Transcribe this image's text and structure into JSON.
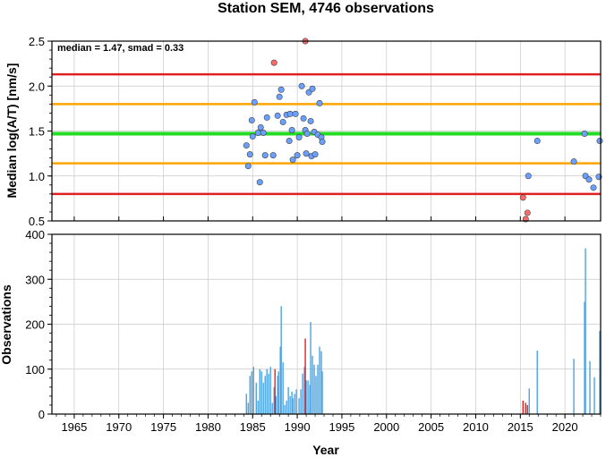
{
  "title": "Station SEM, 4746 observations",
  "chart_data": [
    {
      "type": "scatter",
      "panel": "top",
      "annotation": "median = 1.47, smad = 0.33",
      "xlabel": "",
      "ylabel": "Median log(A/T) [nm/s]",
      "xlim": [
        1962.5,
        2024.0
      ],
      "ylim": [
        0.5,
        2.5
      ],
      "yticks": [
        "0.5",
        "1.0",
        "1.5",
        "2.0",
        "2.5"
      ],
      "grid": true,
      "hlines": [
        {
          "value": 2.13,
          "color": "#e02020"
        },
        {
          "value": 1.8,
          "color": "#ffa500"
        },
        {
          "value": 1.47,
          "color": "#22dd22"
        },
        {
          "value": 1.14,
          "color": "#ffa500"
        },
        {
          "value": 0.8,
          "color": "#e02020"
        }
      ],
      "series": [
        {
          "color": "#6aa0ff",
          "points": [
            [
              1984.3,
              1.34
            ],
            [
              1984.5,
              1.11
            ],
            [
              1984.7,
              1.24
            ],
            [
              1984.9,
              1.62
            ],
            [
              1985.0,
              1.44
            ],
            [
              1985.2,
              1.82
            ],
            [
              1985.6,
              1.48
            ],
            [
              1985.8,
              0.93
            ],
            [
              1985.9,
              1.54
            ],
            [
              1986.2,
              1.48
            ],
            [
              1986.4,
              1.23
            ],
            [
              1986.6,
              1.65
            ],
            [
              1987.3,
              1.23
            ],
            [
              1987.8,
              1.67
            ],
            [
              1988.0,
              1.88
            ],
            [
              1988.2,
              1.96
            ],
            [
              1988.4,
              1.6
            ],
            [
              1988.8,
              1.68
            ],
            [
              1989.1,
              1.39
            ],
            [
              1989.2,
              1.69
            ],
            [
              1989.4,
              1.51
            ],
            [
              1989.5,
              1.18
            ],
            [
              1989.8,
              1.69
            ],
            [
              1990.0,
              1.23
            ],
            [
              1990.2,
              1.43
            ],
            [
              1990.5,
              2.0
            ],
            [
              1990.7,
              1.64
            ],
            [
              1990.9,
              1.51
            ],
            [
              1991.0,
              1.25
            ],
            [
              1991.1,
              1.47
            ],
            [
              1991.3,
              1.93
            ],
            [
              1991.5,
              1.61
            ],
            [
              1991.6,
              1.22
            ],
            [
              1991.7,
              1.97
            ],
            [
              1991.9,
              1.49
            ],
            [
              1992.0,
              1.24
            ],
            [
              1992.3,
              1.46
            ],
            [
              1992.5,
              1.81
            ],
            [
              1992.7,
              1.43
            ],
            [
              1992.8,
              1.38
            ],
            [
              2015.9,
              1.0
            ],
            [
              2016.9,
              1.39
            ],
            [
              2021.0,
              1.16
            ],
            [
              2022.2,
              1.47
            ],
            [
              2022.3,
              1.0
            ],
            [
              2022.7,
              0.96
            ],
            [
              2023.2,
              0.87
            ],
            [
              2023.8,
              0.99
            ],
            [
              2023.9,
              1.39
            ]
          ]
        },
        {
          "color": "#ff6a6a",
          "points": [
            [
              1987.4,
              2.26
            ],
            [
              1990.9,
              2.5
            ],
            [
              2015.3,
              0.76
            ],
            [
              2015.8,
              0.59
            ],
            [
              2015.6,
              0.52
            ]
          ]
        }
      ]
    },
    {
      "type": "bar",
      "panel": "bottom",
      "xlabel": "Year",
      "ylabel": "Observations",
      "xlim": [
        1962.5,
        2024.0
      ],
      "ylim": [
        0,
        400
      ],
      "yticks": [
        "0",
        "100",
        "200",
        "300",
        "400"
      ],
      "xticks": [
        "1965",
        "1970",
        "1975",
        "1980",
        "1985",
        "1990",
        "1995",
        "2000",
        "2005",
        "2010",
        "2015",
        "2020"
      ],
      "grid": true,
      "series": [
        {
          "color": "#4ca3e0",
          "bars": [
            [
              1984.3,
              45
            ],
            [
              1984.5,
              25
            ],
            [
              1984.7,
              85
            ],
            [
              1984.9,
              95
            ],
            [
              1985.1,
              105
            ],
            [
              1985.4,
              70
            ],
            [
              1985.6,
              30
            ],
            [
              1985.8,
              100
            ],
            [
              1986.0,
              95
            ],
            [
              1986.2,
              70
            ],
            [
              1986.4,
              85
            ],
            [
              1986.6,
              100
            ],
            [
              1986.8,
              90
            ],
            [
              1987.0,
              105
            ],
            [
              1987.2,
              25
            ],
            [
              1987.4,
              60
            ],
            [
              1987.6,
              40
            ],
            [
              1987.8,
              85
            ],
            [
              1987.9,
              95
            ],
            [
              1988.1,
              150
            ],
            [
              1988.2,
              240
            ],
            [
              1988.4,
              115
            ],
            [
              1988.6,
              20
            ],
            [
              1988.8,
              30
            ],
            [
              1989.0,
              60
            ],
            [
              1989.2,
              40
            ],
            [
              1989.4,
              50
            ],
            [
              1989.5,
              35
            ],
            [
              1989.7,
              45
            ],
            [
              1989.9,
              55
            ],
            [
              1990.2,
              35
            ],
            [
              1990.4,
              55
            ],
            [
              1990.6,
              90
            ],
            [
              1990.8,
              105
            ],
            [
              1991.0,
              75
            ],
            [
              1991.2,
              75
            ],
            [
              1991.4,
              65
            ],
            [
              1991.5,
              205
            ],
            [
              1991.7,
              130
            ],
            [
              1991.9,
              110
            ],
            [
              1992.1,
              85
            ],
            [
              1992.3,
              110
            ],
            [
              1992.5,
              150
            ],
            [
              1992.7,
              140
            ],
            [
              1992.8,
              95
            ],
            [
              2016.0,
              57
            ],
            [
              2016.9,
              141
            ],
            [
              2021.0,
              123
            ],
            [
              2022.2,
              250
            ],
            [
              2022.3,
              369
            ],
            [
              2022.8,
              118
            ],
            [
              2023.3,
              82
            ],
            [
              2023.9,
              185
            ]
          ]
        },
        {
          "color": "#e02020",
          "bars": [
            [
              1987.5,
              100
            ],
            [
              1990.9,
              168
            ],
            [
              2015.3,
              30
            ],
            [
              2015.6,
              25
            ],
            [
              2015.8,
              20
            ]
          ]
        }
      ]
    }
  ]
}
